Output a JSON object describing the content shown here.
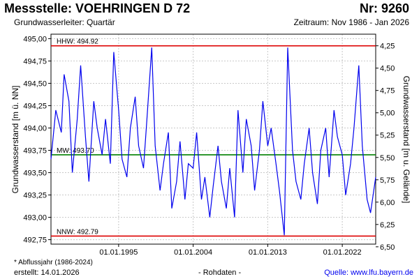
{
  "header": {
    "title": "Messstelle: VOEHRINGEN D 72",
    "number": "Nr: 9260",
    "aquifer": "Grundwasserleiter: Quartär",
    "period": "Zeitraum: Nov 1986 - Jan 2026"
  },
  "footer": {
    "footnote": "* Abflussjahr (1986-2024)",
    "created": "erstellt:  14.01.2026",
    "raw": "- Rohdaten -",
    "source": "Quelle: www.lfu.bayern.de"
  },
  "colors": {
    "series": "#0000ee",
    "hhw": "#dd0000",
    "nnw": "#dd0000",
    "mw": "#008000",
    "grid": "#c8c8c8"
  },
  "chart_data": {
    "type": "line",
    "ylabel_left": "Grundwasserstand [m ü. NN]",
    "ylabel_right": "Grundwasserstand [m u. Gelände]",
    "ylim": [
      492.7,
      495.05
    ],
    "yticks_left": [
      "495,00",
      "494,75",
      "494,50",
      "494,25",
      "494,00",
      "493,75",
      "493,50",
      "493,25",
      "493,00",
      "492,75"
    ],
    "yticks_left_values": [
      495.0,
      494.75,
      494.5,
      494.25,
      494.0,
      493.75,
      493.5,
      493.25,
      493.0,
      492.75
    ],
    "yticks_right": [
      "4,25",
      "4,50",
      "4,75",
      "5,00",
      "5,25",
      "5,50",
      "5,75",
      "6,00",
      "6,25",
      "6,50"
    ],
    "yticks_right_values": [
      4.25,
      4.5,
      4.75,
      5.0,
      5.25,
      5.5,
      5.75,
      6.0,
      6.25,
      6.5
    ],
    "right_axis_reference": 499.17,
    "xlim": [
      "1986-11-01",
      "2026-01-14"
    ],
    "xticks": [
      "01.01.1995",
      "01.01.2004",
      "01.01.2013",
      "01.01.2022"
    ],
    "xtick_dates": [
      "1995-01-01",
      "2004-01-01",
      "2013-01-01",
      "2022-01-01"
    ],
    "reference_lines": [
      {
        "label": "HHW: 494.92",
        "value": 494.92,
        "color": "#dd0000"
      },
      {
        "label": "MW: 493.70",
        "value": 493.7,
        "color": "#008000"
      },
      {
        "label": "NNW: 492.79",
        "value": 492.79,
        "color": "#dd0000"
      }
    ],
    "series": [
      {
        "x": [
          "1986-11-01",
          "1987-06-01",
          "1988-02-01",
          "1988-06-01",
          "1989-01-01",
          "1989-06-01",
          "1990-01-01",
          "1990-06-01",
          "1991-01-01",
          "1991-06-01",
          "1992-01-01",
          "1992-06-01",
          "1993-01-01",
          "1993-06-01",
          "1994-01-01",
          "1994-06-01",
          "1995-01-01",
          "1995-06-01",
          "1996-01-01",
          "1996-06-01",
          "1997-01-01",
          "1997-06-01",
          "1998-01-01",
          "1998-06-01",
          "1999-01-01",
          "1999-06-01",
          "2000-01-01",
          "2000-06-01",
          "2001-01-01",
          "2001-06-01",
          "2002-01-01",
          "2002-06-01",
          "2003-01-01",
          "2003-06-01",
          "2004-01-01",
          "2004-06-01",
          "2005-01-01",
          "2005-06-01",
          "2006-01-01",
          "2006-06-01",
          "2007-01-01",
          "2007-06-01",
          "2008-01-01",
          "2008-06-01",
          "2009-01-01",
          "2009-06-01",
          "2010-01-01",
          "2010-06-01",
          "2011-01-01",
          "2011-06-01",
          "2012-01-01",
          "2012-06-01",
          "2013-01-01",
          "2013-06-01",
          "2014-01-01",
          "2014-06-01",
          "2015-01-01",
          "2015-06-01",
          "2016-01-01",
          "2016-06-01",
          "2017-01-01",
          "2017-06-01",
          "2018-01-01",
          "2018-06-01",
          "2019-01-01",
          "2019-06-01",
          "2020-01-01",
          "2020-06-01",
          "2021-01-01",
          "2021-06-01",
          "2022-01-01",
          "2022-06-01",
          "2023-01-01",
          "2023-06-01",
          "2024-01-01",
          "2024-06-01",
          "2025-01-01",
          "2025-06-01",
          "2026-01-14"
        ],
        "values": [
          493.65,
          494.2,
          493.95,
          494.6,
          494.3,
          493.5,
          494.1,
          494.7,
          493.9,
          493.4,
          494.3,
          494.0,
          493.7,
          494.1,
          493.6,
          494.85,
          494.2,
          493.65,
          493.45,
          494.0,
          494.35,
          493.8,
          493.55,
          494.1,
          494.9,
          493.8,
          493.3,
          493.6,
          493.95,
          493.1,
          493.4,
          493.85,
          493.2,
          493.6,
          493.55,
          493.95,
          493.2,
          493.45,
          493.0,
          493.35,
          493.8,
          493.4,
          493.1,
          493.55,
          493.0,
          494.2,
          493.5,
          494.1,
          493.8,
          493.3,
          493.75,
          494.3,
          493.8,
          494.0,
          493.6,
          493.3,
          492.8,
          494.9,
          493.75,
          493.4,
          493.2,
          493.6,
          494.0,
          493.5,
          493.15,
          493.75,
          494.0,
          493.45,
          494.2,
          493.9,
          493.7,
          493.25,
          493.6,
          494.0,
          494.7,
          493.8,
          493.2,
          493.05,
          493.45
        ]
      }
    ]
  }
}
